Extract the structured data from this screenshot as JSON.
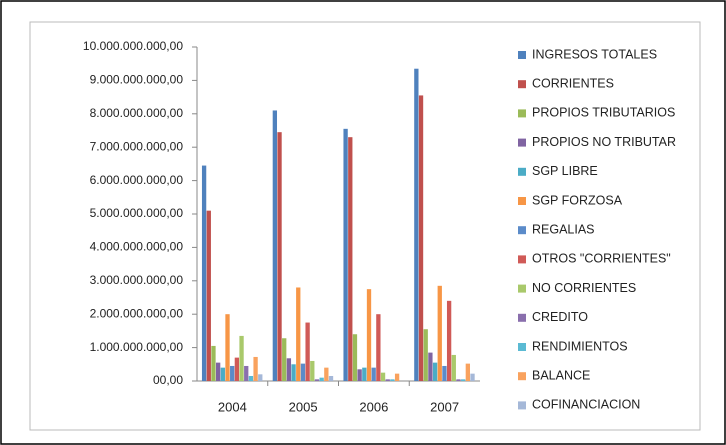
{
  "chart_data": {
    "type": "bar",
    "categories": [
      "2004",
      "2005",
      "2006",
      "2007"
    ],
    "ylim": [
      0,
      10000000000
    ],
    "yticks": [
      {
        "value": 0,
        "label": "00,00"
      },
      {
        "value": 1000000000,
        "label": "1.000.000.000,00"
      },
      {
        "value": 2000000000,
        "label": "2.000.000.000,00"
      },
      {
        "value": 3000000000,
        "label": "3.000.000.000,00"
      },
      {
        "value": 4000000000,
        "label": "4.000.000.000,00"
      },
      {
        "value": 5000000000,
        "label": "5.000.000.000,00"
      },
      {
        "value": 6000000000,
        "label": "6.000.000.000,00"
      },
      {
        "value": 7000000000,
        "label": "7.000.000.000,00"
      },
      {
        "value": 8000000000,
        "label": "8.000.000.000,00"
      },
      {
        "value": 9000000000,
        "label": "9.000.000.000,00"
      },
      {
        "value": 10000000000,
        "label": "10.000.000.000,00"
      }
    ],
    "grid": false,
    "legend": "right",
    "series": [
      {
        "name": "INGRESOS TOTALES",
        "color": "#4F81BD",
        "values": [
          6450000000,
          8100000000,
          7550000000,
          9350000000
        ]
      },
      {
        "name": "CORRIENTES",
        "color": "#C0504D",
        "values": [
          5100000000,
          7450000000,
          7300000000,
          8550000000
        ]
      },
      {
        "name": "PROPIOS TRIBUTARIOS",
        "color": "#9BBB59",
        "values": [
          1050000000,
          1280000000,
          1400000000,
          1550000000
        ]
      },
      {
        "name": "PROPIOS NO TRIBUTAR",
        "color": "#8064A2",
        "values": [
          550000000,
          680000000,
          350000000,
          850000000
        ]
      },
      {
        "name": "SGP LIBRE",
        "color": "#4BACC6",
        "values": [
          400000000,
          500000000,
          400000000,
          550000000
        ]
      },
      {
        "name": "SGP FORZOSA",
        "color": "#F79646",
        "values": [
          2000000000,
          2800000000,
          2750000000,
          2850000000
        ]
      },
      {
        "name": "REGALIAS",
        "color": "#5B8BC9",
        "values": [
          450000000,
          520000000,
          400000000,
          450000000
        ]
      },
      {
        "name": "OTROS \"CORRIENTES\"",
        "color": "#D05A57",
        "values": [
          700000000,
          1750000000,
          2000000000,
          2400000000
        ]
      },
      {
        "name": "NO CORRIENTES",
        "color": "#A9C96B",
        "values": [
          1350000000,
          600000000,
          250000000,
          780000000
        ]
      },
      {
        "name": "CREDITO",
        "color": "#8A6FAD",
        "values": [
          450000000,
          50000000,
          50000000,
          50000000
        ]
      },
      {
        "name": "RENDIMIENTOS",
        "color": "#5BBAD3",
        "values": [
          150000000,
          100000000,
          50000000,
          50000000
        ]
      },
      {
        "name": "BALANCE",
        "color": "#F9A25E",
        "values": [
          720000000,
          400000000,
          220000000,
          520000000
        ]
      },
      {
        "name": "COFINANCIACION",
        "color": "#A5B8D8",
        "values": [
          200000000,
          150000000,
          0,
          220000000
        ]
      }
    ]
  }
}
